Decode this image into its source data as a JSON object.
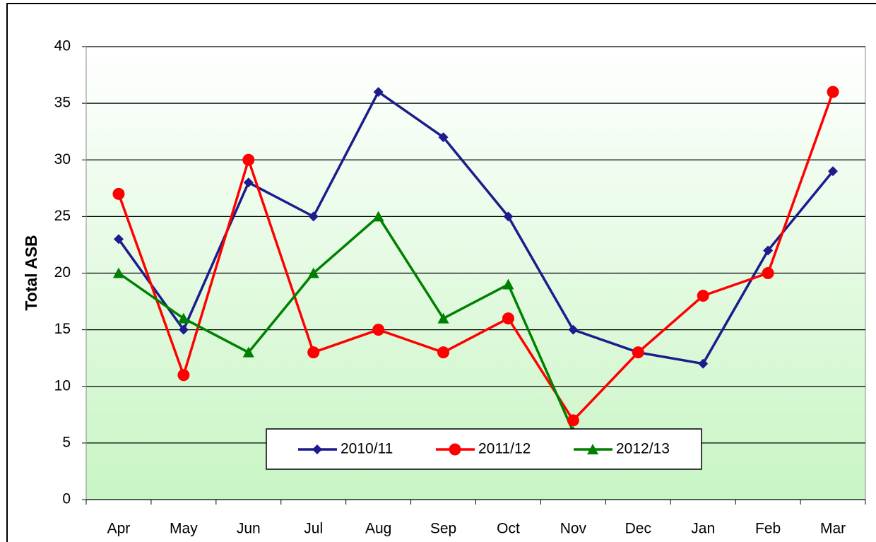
{
  "chart_data": {
    "type": "line",
    "y_label": "Total ASB",
    "categories": [
      "Apr",
      "May",
      "Jun",
      "Jul",
      "Aug",
      "Sep",
      "Oct",
      "Nov",
      "Dec",
      "Jan",
      "Feb",
      "Mar"
    ],
    "series": [
      {
        "name": "2010/11",
        "color": "#1c1c8c",
        "marker": "diamond",
        "values": [
          23,
          15,
          28,
          25,
          36,
          32,
          25,
          15,
          13,
          12,
          22,
          29
        ]
      },
      {
        "name": "2011/12",
        "color": "#ff0000",
        "marker": "circle",
        "values": [
          27,
          11,
          30,
          13,
          15,
          13,
          16,
          7,
          13,
          18,
          20,
          36
        ]
      },
      {
        "name": "2012/13",
        "color": "#008000",
        "marker": "triangle",
        "values": [
          20,
          16,
          13,
          20,
          25,
          16,
          19,
          6,
          null,
          null,
          null,
          null
        ]
      }
    ],
    "ylim": [
      0,
      40
    ],
    "yticks": [
      0,
      5,
      10,
      15,
      20,
      25,
      30,
      35,
      40
    ],
    "grid": true
  }
}
